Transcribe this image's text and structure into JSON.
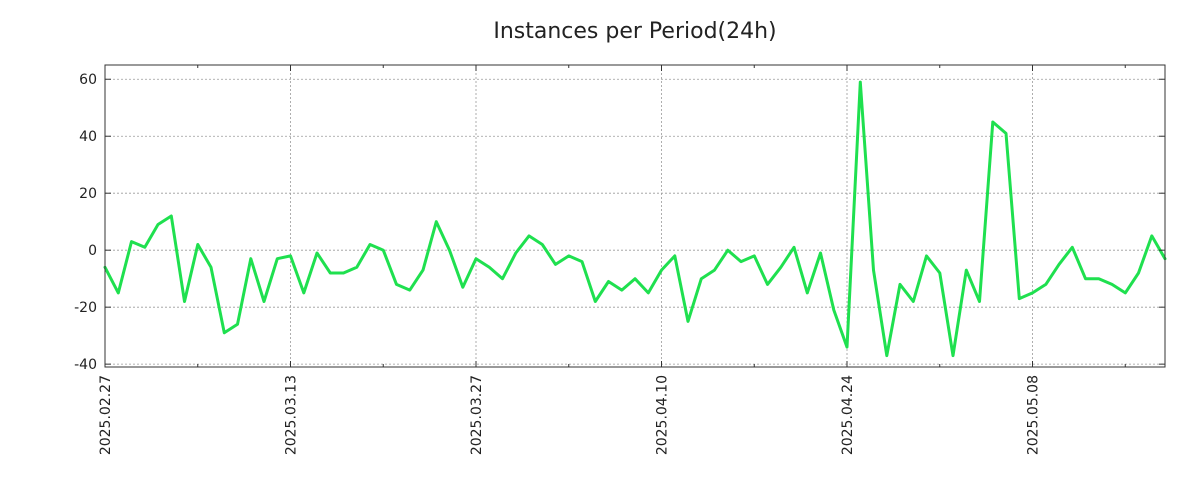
{
  "chart_data": {
    "type": "line",
    "title": "Instances per Period(24h)",
    "xlabel": "",
    "ylabel": "",
    "ylim": [
      -41,
      65
    ],
    "grid": true,
    "y_ticks": [
      60,
      40,
      20,
      0,
      -20,
      -40
    ],
    "y_tick_labels": [
      "60",
      "40",
      "20",
      "0",
      "-20",
      "-40"
    ],
    "x_ticks": [
      0,
      14,
      28,
      42,
      56,
      70
    ],
    "x_tick_labels": [
      "2025.02.27",
      "2025.03.13",
      "2025.03.27",
      "2025.04.10",
      "2025.04.24",
      "2025.05.08"
    ],
    "x_minor_ticks": [
      7,
      21,
      35,
      49,
      63,
      77
    ],
    "xlim": [
      0,
      80
    ],
    "series": [
      {
        "name": "instances",
        "color": "#1fe04f",
        "values": [
          -6,
          -15,
          3,
          1,
          9,
          12,
          -18,
          2,
          -6,
          -29,
          -26,
          -3,
          -18,
          -3,
          -2,
          -15,
          -1,
          -8,
          -8,
          -6,
          2,
          0,
          -12,
          -14,
          -7,
          10,
          0,
          -13,
          -3,
          -6,
          -10,
          -1,
          5,
          2,
          -5,
          -2,
          -4,
          -18,
          -11,
          -14,
          -10,
          -15,
          -7,
          -2,
          -25,
          -10,
          -7,
          0,
          -4,
          -2,
          -12,
          -6,
          1,
          -15,
          -1,
          -21,
          -34,
          59,
          -7,
          -37,
          -12,
          -18,
          -2,
          -8,
          -37,
          -7,
          -18,
          45,
          41,
          -17,
          -15,
          -12,
          -5,
          1,
          -10,
          -10,
          -12,
          -15,
          -8,
          5,
          -3
        ]
      }
    ]
  }
}
